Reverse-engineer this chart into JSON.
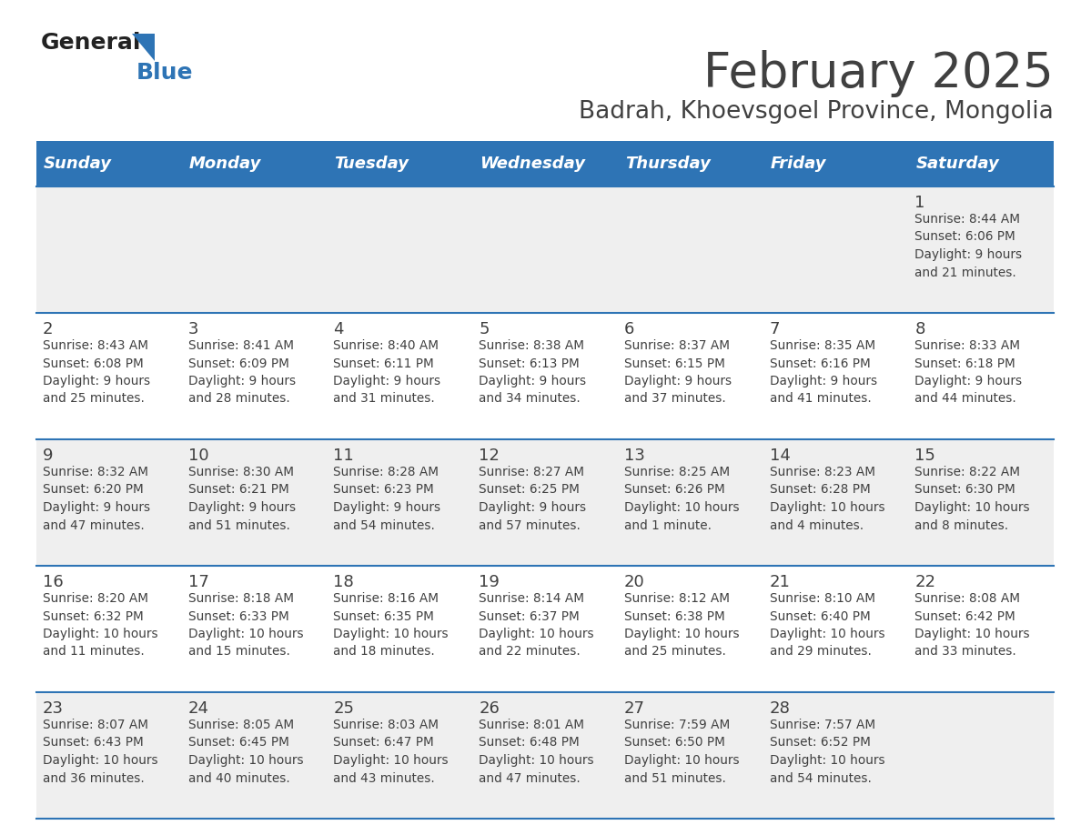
{
  "title": "February 2025",
  "subtitle": "Badrah, Khoevsgoel Province, Mongolia",
  "header_bg": "#2E74B5",
  "header_text_color": "#FFFFFF",
  "cell_bg_odd": "#EFEFEF",
  "cell_bg_even": "#FFFFFF",
  "separator_color": "#2E74B5",
  "text_color": "#404040",
  "days_of_week": [
    "Sunday",
    "Monday",
    "Tuesday",
    "Wednesday",
    "Thursday",
    "Friday",
    "Saturday"
  ],
  "weeks": [
    [
      {
        "day": null,
        "info": null
      },
      {
        "day": null,
        "info": null
      },
      {
        "day": null,
        "info": null
      },
      {
        "day": null,
        "info": null
      },
      {
        "day": null,
        "info": null
      },
      {
        "day": null,
        "info": null
      },
      {
        "day": 1,
        "info": "Sunrise: 8:44 AM\nSunset: 6:06 PM\nDaylight: 9 hours\nand 21 minutes."
      }
    ],
    [
      {
        "day": 2,
        "info": "Sunrise: 8:43 AM\nSunset: 6:08 PM\nDaylight: 9 hours\nand 25 minutes."
      },
      {
        "day": 3,
        "info": "Sunrise: 8:41 AM\nSunset: 6:09 PM\nDaylight: 9 hours\nand 28 minutes."
      },
      {
        "day": 4,
        "info": "Sunrise: 8:40 AM\nSunset: 6:11 PM\nDaylight: 9 hours\nand 31 minutes."
      },
      {
        "day": 5,
        "info": "Sunrise: 8:38 AM\nSunset: 6:13 PM\nDaylight: 9 hours\nand 34 minutes."
      },
      {
        "day": 6,
        "info": "Sunrise: 8:37 AM\nSunset: 6:15 PM\nDaylight: 9 hours\nand 37 minutes."
      },
      {
        "day": 7,
        "info": "Sunrise: 8:35 AM\nSunset: 6:16 PM\nDaylight: 9 hours\nand 41 minutes."
      },
      {
        "day": 8,
        "info": "Sunrise: 8:33 AM\nSunset: 6:18 PM\nDaylight: 9 hours\nand 44 minutes."
      }
    ],
    [
      {
        "day": 9,
        "info": "Sunrise: 8:32 AM\nSunset: 6:20 PM\nDaylight: 9 hours\nand 47 minutes."
      },
      {
        "day": 10,
        "info": "Sunrise: 8:30 AM\nSunset: 6:21 PM\nDaylight: 9 hours\nand 51 minutes."
      },
      {
        "day": 11,
        "info": "Sunrise: 8:28 AM\nSunset: 6:23 PM\nDaylight: 9 hours\nand 54 minutes."
      },
      {
        "day": 12,
        "info": "Sunrise: 8:27 AM\nSunset: 6:25 PM\nDaylight: 9 hours\nand 57 minutes."
      },
      {
        "day": 13,
        "info": "Sunrise: 8:25 AM\nSunset: 6:26 PM\nDaylight: 10 hours\nand 1 minute."
      },
      {
        "day": 14,
        "info": "Sunrise: 8:23 AM\nSunset: 6:28 PM\nDaylight: 10 hours\nand 4 minutes."
      },
      {
        "day": 15,
        "info": "Sunrise: 8:22 AM\nSunset: 6:30 PM\nDaylight: 10 hours\nand 8 minutes."
      }
    ],
    [
      {
        "day": 16,
        "info": "Sunrise: 8:20 AM\nSunset: 6:32 PM\nDaylight: 10 hours\nand 11 minutes."
      },
      {
        "day": 17,
        "info": "Sunrise: 8:18 AM\nSunset: 6:33 PM\nDaylight: 10 hours\nand 15 minutes."
      },
      {
        "day": 18,
        "info": "Sunrise: 8:16 AM\nSunset: 6:35 PM\nDaylight: 10 hours\nand 18 minutes."
      },
      {
        "day": 19,
        "info": "Sunrise: 8:14 AM\nSunset: 6:37 PM\nDaylight: 10 hours\nand 22 minutes."
      },
      {
        "day": 20,
        "info": "Sunrise: 8:12 AM\nSunset: 6:38 PM\nDaylight: 10 hours\nand 25 minutes."
      },
      {
        "day": 21,
        "info": "Sunrise: 8:10 AM\nSunset: 6:40 PM\nDaylight: 10 hours\nand 29 minutes."
      },
      {
        "day": 22,
        "info": "Sunrise: 8:08 AM\nSunset: 6:42 PM\nDaylight: 10 hours\nand 33 minutes."
      }
    ],
    [
      {
        "day": 23,
        "info": "Sunrise: 8:07 AM\nSunset: 6:43 PM\nDaylight: 10 hours\nand 36 minutes."
      },
      {
        "day": 24,
        "info": "Sunrise: 8:05 AM\nSunset: 6:45 PM\nDaylight: 10 hours\nand 40 minutes."
      },
      {
        "day": 25,
        "info": "Sunrise: 8:03 AM\nSunset: 6:47 PM\nDaylight: 10 hours\nand 43 minutes."
      },
      {
        "day": 26,
        "info": "Sunrise: 8:01 AM\nSunset: 6:48 PM\nDaylight: 10 hours\nand 47 minutes."
      },
      {
        "day": 27,
        "info": "Sunrise: 7:59 AM\nSunset: 6:50 PM\nDaylight: 10 hours\nand 51 minutes."
      },
      {
        "day": 28,
        "info": "Sunrise: 7:57 AM\nSunset: 6:52 PM\nDaylight: 10 hours\nand 54 minutes."
      },
      {
        "day": null,
        "info": null
      }
    ]
  ],
  "logo_color1": "#222222",
  "logo_color2": "#2E74B5",
  "title_fontsize": 38,
  "subtitle_fontsize": 19,
  "header_fontsize": 13,
  "day_num_fontsize": 13,
  "info_fontsize": 9.8
}
